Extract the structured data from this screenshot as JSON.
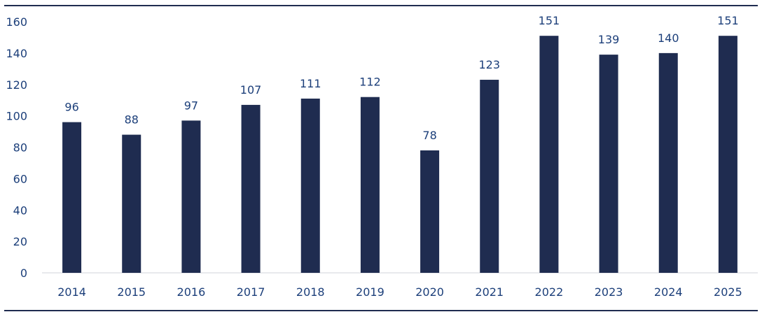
{
  "chart_data": {
    "type": "bar",
    "categories": [
      "2014",
      "2015",
      "2016",
      "2017",
      "2018",
      "2019",
      "2020",
      "2021",
      "2022",
      "2023",
      "2024",
      "2025"
    ],
    "values": [
      96,
      88,
      97,
      107,
      111,
      112,
      78,
      123,
      151,
      139,
      140,
      151
    ],
    "data_labels": [
      "96",
      "88",
      "97",
      "107",
      "111",
      "112",
      "78",
      "123",
      "151",
      "139",
      "140",
      "151"
    ],
    "y_ticks": [
      "0",
      "20",
      "40",
      "60",
      "80",
      "100",
      "120",
      "140",
      "160"
    ],
    "title": "",
    "xlabel": "",
    "ylabel": "",
    "ylim": [
      0,
      160
    ],
    "grid": false,
    "colors": {
      "bar": "#1f2c50",
      "label_text": "#1c3f7a",
      "rule": "#1f2c50"
    }
  }
}
